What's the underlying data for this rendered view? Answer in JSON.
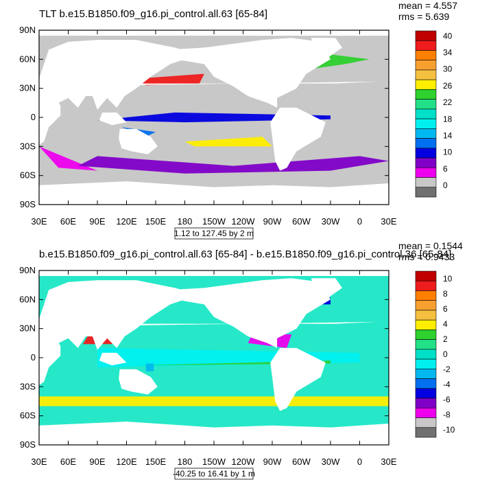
{
  "chart_data": [
    {
      "type": "heatmap",
      "title": "TLT b.e15.B1850.f09_g16.pi_control.all.63 [65-84]",
      "stats": [
        "mean = 4.557",
        "rms = 5.639"
      ],
      "range_text": "1.12 to 127.45 by 2 m",
      "x_ticks": [
        "30E",
        "60E",
        "90E",
        "120E",
        "150E",
        "180",
        "150W",
        "120W",
        "90W",
        "60W",
        "30W",
        "0",
        "30E"
      ],
      "y_ticks": [
        "90N",
        "60N",
        "30N",
        "0",
        "30S",
        "60S",
        "90S"
      ],
      "ylim": [
        -90,
        90
      ],
      "colorbar": {
        "labels": [
          "40",
          "34",
          "30",
          "26",
          "22",
          "18",
          "14",
          "10",
          "6",
          "0"
        ],
        "colors": [
          "#c00000",
          "#ee1c1c",
          "#ff7f00",
          "#f7a030",
          "#f5c040",
          "#ffee00",
          "#2ed12e",
          "#22e088",
          "#00e0c8",
          "#00f0f0",
          "#00b8f0",
          "#0070f0",
          "#0000e0",
          "#8000c8",
          "#ee00ee",
          "#c8c8c8",
          "#707070"
        ]
      },
      "ocean_color": "#c8c8c8",
      "feature_colors": [
        "#ee00ee",
        "#8000c8",
        "#0000e0",
        "#0070f0",
        "#00e0c8",
        "#2ed12e",
        "#ffee00",
        "#ee1c1c"
      ]
    },
    {
      "type": "heatmap",
      "title": "b.e15.B1850.f09_g16.pi_control.all.63 [65-84] - b.e15.B1850.f09_g16.pi_control.36 [65-84]",
      "stats": [
        "mean = 0.1544",
        "rms = 0.9433"
      ],
      "range_text": "-40.25 to 16.41 by 1 m",
      "x_ticks": [
        "30E",
        "60E",
        "90E",
        "120E",
        "150E",
        "180",
        "150W",
        "120W",
        "90W",
        "60W",
        "30W",
        "0",
        "30E"
      ],
      "y_ticks": [
        "90N",
        "60N",
        "30N",
        "0",
        "30S",
        "60S",
        "90S"
      ],
      "ylim": [
        -90,
        90
      ],
      "colorbar": {
        "labels": [
          "10",
          "8",
          "6",
          "4",
          "2",
          "0",
          "-2",
          "-4",
          "-6",
          "-8",
          "-10"
        ],
        "colors": [
          "#c00000",
          "#ee1c1c",
          "#ff7f00",
          "#f7a030",
          "#f5c040",
          "#ffee00",
          "#2ed12e",
          "#22e088",
          "#00e0c8",
          "#00f0f0",
          "#00b8f0",
          "#0070f0",
          "#0000e0",
          "#8000c8",
          "#ee00ee",
          "#c8c8c8",
          "#707070"
        ]
      },
      "ocean_color": "#26e8c8",
      "feature_colors": [
        "#00f0f0",
        "#2ed12e",
        "#ffee00",
        "#00b8f0",
        "#0000e0",
        "#ee00ee",
        "#ee1c1c"
      ]
    }
  ]
}
